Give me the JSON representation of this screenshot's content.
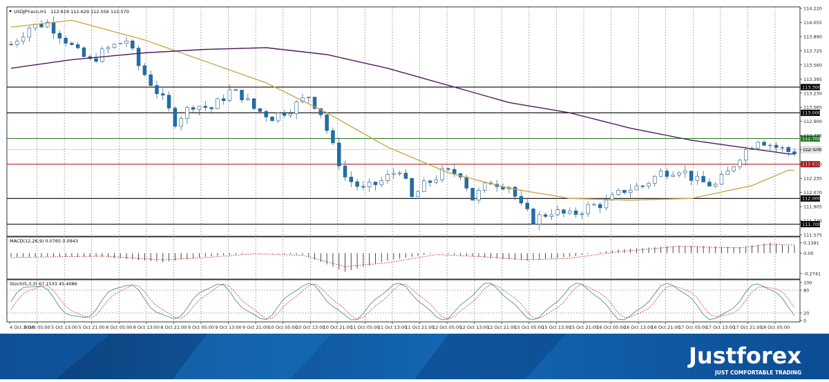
{
  "chart_data": {
    "type": "candlestick",
    "symbol_label": "USDJPY.ecn,H1",
    "ohlc_label": "112.619 112.629 112.556 112.570",
    "price_axis": {
      "ylim": [
        111.575,
        114.22
      ],
      "ticks": [
        "114.220",
        "114.055",
        "113.890",
        "113.725",
        "113.560",
        "113.395",
        "113.230",
        "113.065",
        "112.900",
        "112.735",
        "112.570",
        "112.400",
        "112.235",
        "112.070",
        "111.905",
        "111.740",
        "111.575"
      ],
      "ticks_values": [
        114.22,
        114.055,
        113.89,
        113.725,
        113.56,
        113.395,
        113.23,
        113.065,
        112.9,
        112.735,
        112.57,
        112.4,
        112.235,
        112.07,
        111.905,
        111.74,
        111.575
      ]
    },
    "horizontal_levels": [
      {
        "label": "113.300",
        "value": 113.3,
        "color": "#000000"
      },
      {
        "label": "113.000",
        "value": 113.0,
        "color": "#000000"
      },
      {
        "label": "112.700",
        "value": 112.7,
        "color": "#1f7a1f"
      },
      {
        "label": "112.400",
        "value": 112.4,
        "color": "#b22222"
      },
      {
        "label": "112.000",
        "value": 112.0,
        "color": "#000000"
      },
      {
        "label": "111.700",
        "value": 111.7,
        "color": "#000000"
      }
    ],
    "current_price": {
      "label": "112.570",
      "value": 112.57
    },
    "x_ticks": [
      "4 Oct 2018",
      "5 Oct 05:00",
      "5 Oct 13:00",
      "5 Oct 21:00",
      "8 Oct 05:00",
      "8 Oct 13:00",
      "8 Oct 21:00",
      "9 Oct 05:00",
      "9 Oct 13:00",
      "9 Oct 21:00",
      "10 Oct 05:00",
      "10 Oct 13:00",
      "10 Oct 21:00",
      "11 Oct 05:00",
      "11 Oct 13:00",
      "11 Oct 21:00",
      "12 Oct 05:00",
      "12 Oct 13:00",
      "12 Oct 21:00",
      "15 Oct 05:00",
      "15 Oct 13:00",
      "15 Oct 21:00",
      "16 Oct 05:00",
      "16 Oct 13:00",
      "16 Oct 21:00",
      "17 Oct 05:00",
      "17 Oct 13:00",
      "17 Oct 21:00",
      "18 Oct 05:00"
    ],
    "price_path": [
      [
        0,
        113.8
      ],
      [
        3,
        114.0
      ],
      [
        6,
        114.05
      ],
      [
        9,
        113.85
      ],
      [
        11,
        113.7
      ],
      [
        13,
        113.6
      ],
      [
        16,
        113.75
      ],
      [
        19,
        113.85
      ],
      [
        21,
        113.55
      ],
      [
        23,
        113.35
      ],
      [
        25,
        113.15
      ],
      [
        27,
        112.9
      ],
      [
        30,
        113.1
      ],
      [
        33,
        113.05
      ],
      [
        36,
        113.25
      ],
      [
        38,
        113.2
      ],
      [
        40,
        113.05
      ],
      [
        43,
        112.95
      ],
      [
        46,
        113.05
      ],
      [
        49,
        113.2
      ],
      [
        51,
        113.0
      ],
      [
        53,
        112.6
      ],
      [
        55,
        112.25
      ],
      [
        58,
        112.1
      ],
      [
        61,
        112.2
      ],
      [
        64,
        112.35
      ],
      [
        66,
        112.0
      ],
      [
        68,
        112.15
      ],
      [
        71,
        112.3
      ],
      [
        74,
        112.3
      ],
      [
        76,
        112.0
      ],
      [
        79,
        112.2
      ],
      [
        82,
        112.15
      ],
      [
        84,
        111.9
      ],
      [
        86,
        111.75
      ],
      [
        89,
        111.85
      ],
      [
        92,
        111.8
      ],
      [
        95,
        111.9
      ],
      [
        98,
        111.95
      ],
      [
        101,
        112.1
      ],
      [
        104,
        112.15
      ],
      [
        107,
        112.3
      ],
      [
        110,
        112.35
      ],
      [
        113,
        112.2
      ],
      [
        116,
        112.15
      ],
      [
        118,
        112.3
      ],
      [
        120,
        112.5
      ],
      [
        123,
        112.7
      ],
      [
        126,
        112.6
      ],
      [
        128,
        112.55
      ]
    ],
    "bars_count": 130,
    "ma_fast": {
      "name": "",
      "color": "#c9a84a",
      "points": [
        [
          0,
          114.0
        ],
        [
          10,
          114.08
        ],
        [
          22,
          113.85
        ],
        [
          32,
          113.6
        ],
        [
          42,
          113.35
        ],
        [
          52,
          113.0
        ],
        [
          62,
          112.6
        ],
        [
          72,
          112.3
        ],
        [
          82,
          112.12
        ],
        [
          92,
          112.0
        ],
        [
          102,
          111.98
        ],
        [
          112,
          112.0
        ],
        [
          122,
          112.15
        ],
        [
          128,
          112.33
        ]
      ]
    },
    "ma_slow": {
      "name": "",
      "color": "#4b1a5c",
      "points": [
        [
          0,
          113.52
        ],
        [
          10,
          113.62
        ],
        [
          22,
          113.7
        ],
        [
          32,
          113.74
        ],
        [
          42,
          113.76
        ],
        [
          52,
          113.68
        ],
        [
          62,
          113.52
        ],
        [
          72,
          113.32
        ],
        [
          82,
          113.12
        ],
        [
          92,
          113.0
        ],
        [
          102,
          112.82
        ],
        [
          112,
          112.68
        ],
        [
          122,
          112.58
        ],
        [
          128,
          112.52
        ]
      ]
    },
    "macd": {
      "label": "MACD(12,26,9) 0.0765 0.0943",
      "ticks": [
        "0.1391",
        "0.00",
        "-0.2741"
      ],
      "ticks_values": [
        0.1391,
        0,
        -0.2741
      ],
      "ylim": [
        -0.33,
        0.18
      ]
    },
    "stoch": {
      "label": "Stoch(5,3,3) 67.1533 45.4086",
      "ticks": [
        "100",
        "80",
        "20",
        "0"
      ],
      "ticks_values": [
        100,
        80,
        20,
        0
      ],
      "levels": [
        80,
        20
      ]
    }
  },
  "branding": {
    "logo": "Justforex",
    "tagline": "JUST COMFORTABLE TRADING"
  }
}
